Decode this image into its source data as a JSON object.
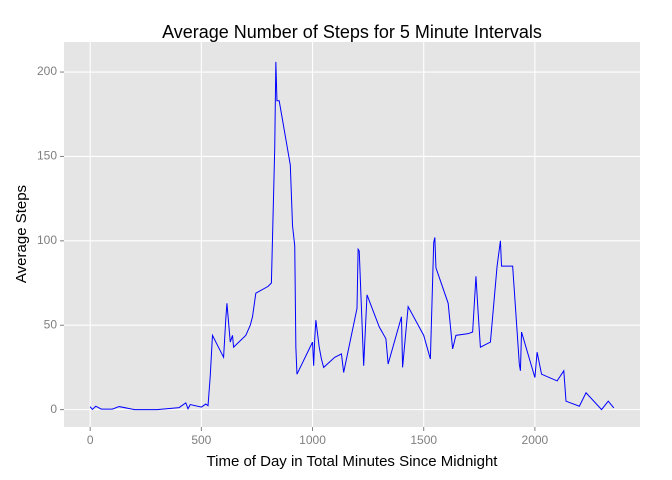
{
  "chart_data": {
    "type": "line",
    "title": "Average Number of Steps for 5 Minute Intervals",
    "x_label": "Time of Day in Total Minutes Since Midnight",
    "y_label": "Average Steps",
    "x": [
      0,
      10,
      25,
      50,
      100,
      130,
      200,
      300,
      400,
      430,
      440,
      450,
      500,
      520,
      530,
      540,
      550,
      600,
      610,
      615,
      630,
      640,
      645,
      700,
      720,
      730,
      745,
      800,
      815,
      830,
      835,
      840,
      850,
      900,
      910,
      920,
      925,
      930,
      1000,
      1005,
      1010,
      1015,
      1030,
      1040,
      1050,
      1100,
      1130,
      1140,
      1200,
      1205,
      1210,
      1230,
      1245,
      1300,
      1330,
      1340,
      1400,
      1405,
      1430,
      1500,
      1530,
      1545,
      1550,
      1555,
      1610,
      1630,
      1645,
      1700,
      1720,
      1735,
      1745,
      1755,
      1800,
      1830,
      1845,
      1850,
      1900,
      1930,
      1935,
      1940,
      2000,
      2010,
      2030,
      2100,
      2130,
      2140,
      2200,
      2230,
      2300,
      2330,
      2355
    ],
    "series": [
      {
        "name": "Average Steps",
        "color": "#0000FF",
        "values": [
          1.7,
          0.1,
          2,
          0.3,
          0.3,
          1.8,
          0,
          0,
          1.2,
          4,
          0.5,
          3,
          1.5,
          3.3,
          2.3,
          20,
          44,
          31,
          54,
          63,
          40,
          44,
          37,
          44,
          50,
          55,
          69,
          73,
          75,
          155,
          206,
          183,
          183,
          145,
          109,
          97,
          37,
          21,
          40,
          26,
          42,
          53,
          37,
          30,
          25,
          31,
          33,
          22,
          60,
          95,
          94,
          26,
          68,
          49,
          42,
          27,
          55,
          25,
          61,
          44,
          30,
          99,
          102,
          84,
          63,
          36,
          44,
          45,
          46,
          79,
          57,
          37,
          40,
          85,
          100,
          85,
          85,
          27,
          23,
          46,
          19,
          34,
          21,
          17,
          23,
          5,
          2,
          10,
          0,
          5,
          1
        ]
      }
    ],
    "xlim": [
      -117.75,
      2472.75
    ],
    "ylim": [
      -10.3,
      217.8
    ],
    "xticks": [
      0,
      500,
      1000,
      1500,
      2000
    ],
    "yticks": [
      0,
      50,
      100,
      150,
      200
    ],
    "grid": true
  }
}
